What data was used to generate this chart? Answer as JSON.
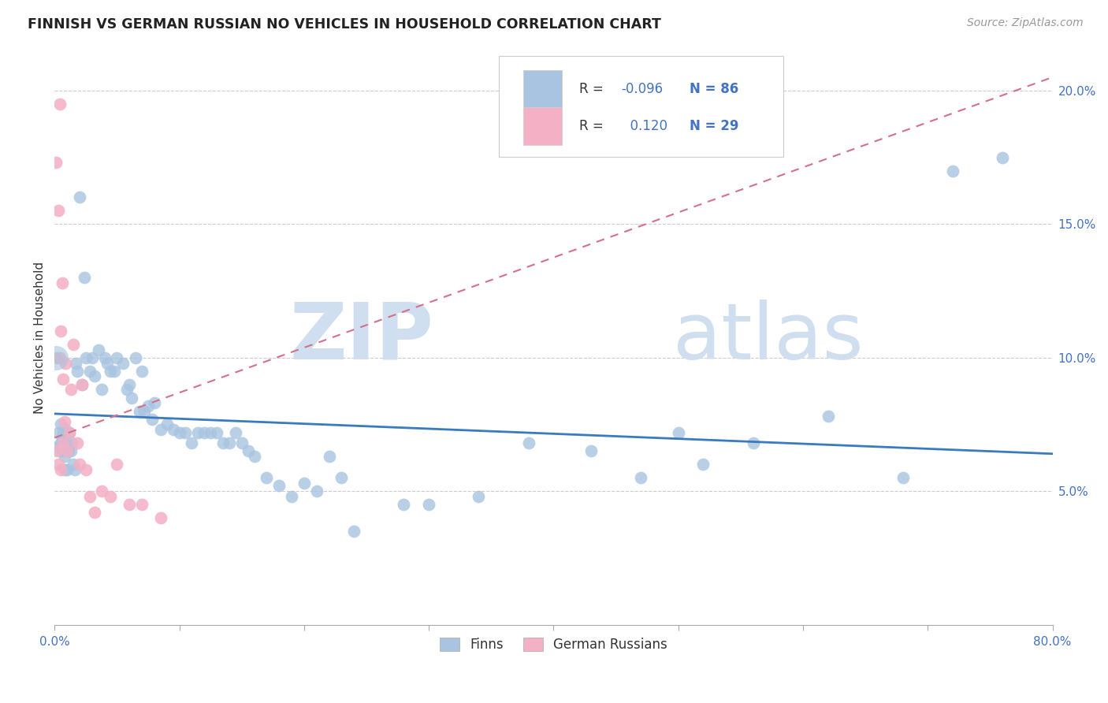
{
  "title": "FINNISH VS GERMAN RUSSIAN NO VEHICLES IN HOUSEHOLD CORRELATION CHART",
  "source": "Source: ZipAtlas.com",
  "ylabel": "No Vehicles in Household",
  "xlim": [
    0.0,
    0.8
  ],
  "ylim": [
    0.0,
    0.215
  ],
  "yticks_right": [
    0.05,
    0.1,
    0.15,
    0.2
  ],
  "ytick_labels_right": [
    "5.0%",
    "10.0%",
    "15.0%",
    "20.0%"
  ],
  "legend_r_finn": "-0.096",
  "legend_n_finn": "86",
  "legend_r_german": "0.120",
  "legend_n_german": "29",
  "finn_color": "#a8c4e0",
  "german_color": "#f4b0c4",
  "finn_line_color": "#3a7abf",
  "german_line_color": "#d4708a",
  "watermark_zip": "ZIP",
  "watermark_atlas": "atlas",
  "finn_line_start_y": 0.079,
  "finn_line_end_y": 0.064,
  "german_line_start_y": 0.07,
  "german_line_end_y": 0.205,
  "finn_x": [
    0.002,
    0.003,
    0.003,
    0.004,
    0.005,
    0.005,
    0.006,
    0.006,
    0.007,
    0.007,
    0.008,
    0.008,
    0.009,
    0.009,
    0.01,
    0.01,
    0.011,
    0.012,
    0.013,
    0.014,
    0.015,
    0.016,
    0.017,
    0.018,
    0.02,
    0.022,
    0.024,
    0.025,
    0.028,
    0.03,
    0.032,
    0.035,
    0.038,
    0.04,
    0.042,
    0.045,
    0.048,
    0.05,
    0.055,
    0.058,
    0.06,
    0.062,
    0.065,
    0.068,
    0.07,
    0.072,
    0.075,
    0.078,
    0.08,
    0.085,
    0.09,
    0.095,
    0.1,
    0.105,
    0.11,
    0.115,
    0.12,
    0.125,
    0.13,
    0.135,
    0.14,
    0.145,
    0.15,
    0.155,
    0.16,
    0.17,
    0.18,
    0.19,
    0.2,
    0.21,
    0.22,
    0.23,
    0.24,
    0.28,
    0.3,
    0.34,
    0.38,
    0.43,
    0.47,
    0.5,
    0.52,
    0.56,
    0.62,
    0.68,
    0.72,
    0.76
  ],
  "finn_y": [
    0.1,
    0.067,
    0.072,
    0.065,
    0.068,
    0.075,
    0.07,
    0.065,
    0.072,
    0.068,
    0.063,
    0.058,
    0.073,
    0.066,
    0.068,
    0.058,
    0.065,
    0.072,
    0.065,
    0.068,
    0.06,
    0.058,
    0.098,
    0.095,
    0.16,
    0.09,
    0.13,
    0.1,
    0.095,
    0.1,
    0.093,
    0.103,
    0.088,
    0.1,
    0.098,
    0.095,
    0.095,
    0.1,
    0.098,
    0.088,
    0.09,
    0.085,
    0.1,
    0.08,
    0.095,
    0.08,
    0.082,
    0.077,
    0.083,
    0.073,
    0.075,
    0.073,
    0.072,
    0.072,
    0.068,
    0.072,
    0.072,
    0.072,
    0.072,
    0.068,
    0.068,
    0.072,
    0.068,
    0.065,
    0.063,
    0.055,
    0.052,
    0.048,
    0.053,
    0.05,
    0.063,
    0.055,
    0.035,
    0.045,
    0.045,
    0.048,
    0.068,
    0.065,
    0.055,
    0.072,
    0.06,
    0.068,
    0.078,
    0.055,
    0.17,
    0.175
  ],
  "german_x": [
    0.001,
    0.002,
    0.003,
    0.003,
    0.004,
    0.004,
    0.005,
    0.005,
    0.006,
    0.007,
    0.007,
    0.008,
    0.009,
    0.01,
    0.012,
    0.013,
    0.015,
    0.018,
    0.02,
    0.022,
    0.025,
    0.028,
    0.032,
    0.038,
    0.045,
    0.05,
    0.06,
    0.07,
    0.085
  ],
  "german_y": [
    0.173,
    0.065,
    0.155,
    0.06,
    0.195,
    0.1,
    0.11,
    0.058,
    0.128,
    0.092,
    0.068,
    0.076,
    0.098,
    0.065,
    0.072,
    0.088,
    0.105,
    0.068,
    0.06,
    0.09,
    0.058,
    0.048,
    0.042,
    0.05,
    0.048,
    0.06,
    0.045,
    0.045,
    0.04
  ]
}
